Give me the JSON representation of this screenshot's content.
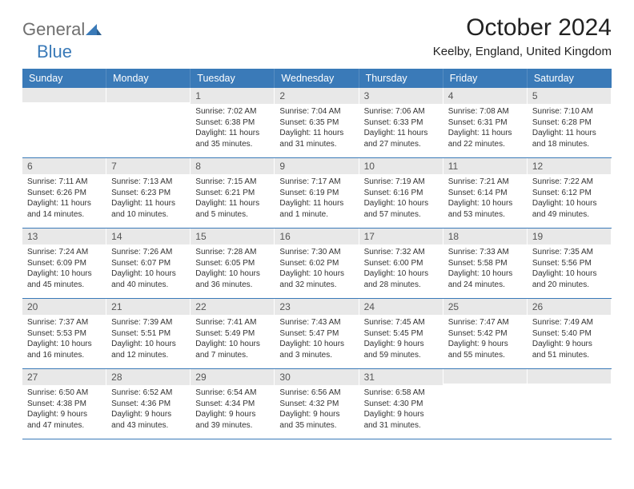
{
  "logo": {
    "text1": "General",
    "text2": "Blue"
  },
  "title": "October 2024",
  "location": "Keelby, England, United Kingdom",
  "colors": {
    "header_bar": "#3a7ab8",
    "daynum_bg": "#e8e8e8",
    "text": "#333333",
    "logo_gray": "#6f6f6f",
    "logo_blue": "#3a7ab8"
  },
  "weekdays": [
    "Sunday",
    "Monday",
    "Tuesday",
    "Wednesday",
    "Thursday",
    "Friday",
    "Saturday"
  ],
  "weeks": [
    [
      null,
      null,
      {
        "n": "1",
        "sr": "Sunrise: 7:02 AM",
        "ss": "Sunset: 6:38 PM",
        "dl": "Daylight: 11 hours and 35 minutes."
      },
      {
        "n": "2",
        "sr": "Sunrise: 7:04 AM",
        "ss": "Sunset: 6:35 PM",
        "dl": "Daylight: 11 hours and 31 minutes."
      },
      {
        "n": "3",
        "sr": "Sunrise: 7:06 AM",
        "ss": "Sunset: 6:33 PM",
        "dl": "Daylight: 11 hours and 27 minutes."
      },
      {
        "n": "4",
        "sr": "Sunrise: 7:08 AM",
        "ss": "Sunset: 6:31 PM",
        "dl": "Daylight: 11 hours and 22 minutes."
      },
      {
        "n": "5",
        "sr": "Sunrise: 7:10 AM",
        "ss": "Sunset: 6:28 PM",
        "dl": "Daylight: 11 hours and 18 minutes."
      }
    ],
    [
      {
        "n": "6",
        "sr": "Sunrise: 7:11 AM",
        "ss": "Sunset: 6:26 PM",
        "dl": "Daylight: 11 hours and 14 minutes."
      },
      {
        "n": "7",
        "sr": "Sunrise: 7:13 AM",
        "ss": "Sunset: 6:23 PM",
        "dl": "Daylight: 11 hours and 10 minutes."
      },
      {
        "n": "8",
        "sr": "Sunrise: 7:15 AM",
        "ss": "Sunset: 6:21 PM",
        "dl": "Daylight: 11 hours and 5 minutes."
      },
      {
        "n": "9",
        "sr": "Sunrise: 7:17 AM",
        "ss": "Sunset: 6:19 PM",
        "dl": "Daylight: 11 hours and 1 minute."
      },
      {
        "n": "10",
        "sr": "Sunrise: 7:19 AM",
        "ss": "Sunset: 6:16 PM",
        "dl": "Daylight: 10 hours and 57 minutes."
      },
      {
        "n": "11",
        "sr": "Sunrise: 7:21 AM",
        "ss": "Sunset: 6:14 PM",
        "dl": "Daylight: 10 hours and 53 minutes."
      },
      {
        "n": "12",
        "sr": "Sunrise: 7:22 AM",
        "ss": "Sunset: 6:12 PM",
        "dl": "Daylight: 10 hours and 49 minutes."
      }
    ],
    [
      {
        "n": "13",
        "sr": "Sunrise: 7:24 AM",
        "ss": "Sunset: 6:09 PM",
        "dl": "Daylight: 10 hours and 45 minutes."
      },
      {
        "n": "14",
        "sr": "Sunrise: 7:26 AM",
        "ss": "Sunset: 6:07 PM",
        "dl": "Daylight: 10 hours and 40 minutes."
      },
      {
        "n": "15",
        "sr": "Sunrise: 7:28 AM",
        "ss": "Sunset: 6:05 PM",
        "dl": "Daylight: 10 hours and 36 minutes."
      },
      {
        "n": "16",
        "sr": "Sunrise: 7:30 AM",
        "ss": "Sunset: 6:02 PM",
        "dl": "Daylight: 10 hours and 32 minutes."
      },
      {
        "n": "17",
        "sr": "Sunrise: 7:32 AM",
        "ss": "Sunset: 6:00 PM",
        "dl": "Daylight: 10 hours and 28 minutes."
      },
      {
        "n": "18",
        "sr": "Sunrise: 7:33 AM",
        "ss": "Sunset: 5:58 PM",
        "dl": "Daylight: 10 hours and 24 minutes."
      },
      {
        "n": "19",
        "sr": "Sunrise: 7:35 AM",
        "ss": "Sunset: 5:56 PM",
        "dl": "Daylight: 10 hours and 20 minutes."
      }
    ],
    [
      {
        "n": "20",
        "sr": "Sunrise: 7:37 AM",
        "ss": "Sunset: 5:53 PM",
        "dl": "Daylight: 10 hours and 16 minutes."
      },
      {
        "n": "21",
        "sr": "Sunrise: 7:39 AM",
        "ss": "Sunset: 5:51 PM",
        "dl": "Daylight: 10 hours and 12 minutes."
      },
      {
        "n": "22",
        "sr": "Sunrise: 7:41 AM",
        "ss": "Sunset: 5:49 PM",
        "dl": "Daylight: 10 hours and 7 minutes."
      },
      {
        "n": "23",
        "sr": "Sunrise: 7:43 AM",
        "ss": "Sunset: 5:47 PM",
        "dl": "Daylight: 10 hours and 3 minutes."
      },
      {
        "n": "24",
        "sr": "Sunrise: 7:45 AM",
        "ss": "Sunset: 5:45 PM",
        "dl": "Daylight: 9 hours and 59 minutes."
      },
      {
        "n": "25",
        "sr": "Sunrise: 7:47 AM",
        "ss": "Sunset: 5:42 PM",
        "dl": "Daylight: 9 hours and 55 minutes."
      },
      {
        "n": "26",
        "sr": "Sunrise: 7:49 AM",
        "ss": "Sunset: 5:40 PM",
        "dl": "Daylight: 9 hours and 51 minutes."
      }
    ],
    [
      {
        "n": "27",
        "sr": "Sunrise: 6:50 AM",
        "ss": "Sunset: 4:38 PM",
        "dl": "Daylight: 9 hours and 47 minutes."
      },
      {
        "n": "28",
        "sr": "Sunrise: 6:52 AM",
        "ss": "Sunset: 4:36 PM",
        "dl": "Daylight: 9 hours and 43 minutes."
      },
      {
        "n": "29",
        "sr": "Sunrise: 6:54 AM",
        "ss": "Sunset: 4:34 PM",
        "dl": "Daylight: 9 hours and 39 minutes."
      },
      {
        "n": "30",
        "sr": "Sunrise: 6:56 AM",
        "ss": "Sunset: 4:32 PM",
        "dl": "Daylight: 9 hours and 35 minutes."
      },
      {
        "n": "31",
        "sr": "Sunrise: 6:58 AM",
        "ss": "Sunset: 4:30 PM",
        "dl": "Daylight: 9 hours and 31 minutes."
      },
      null,
      null
    ]
  ]
}
